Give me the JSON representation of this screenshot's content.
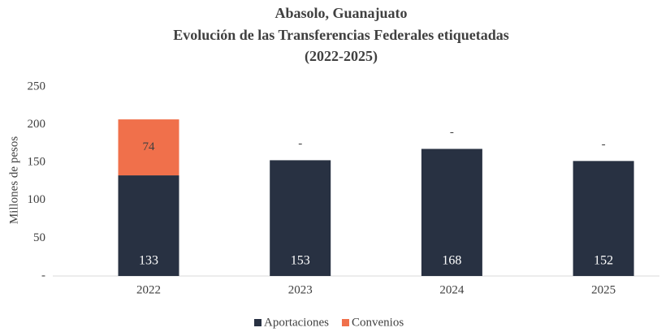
{
  "chart_data": {
    "type": "stacked_bar",
    "title": [
      "Abasolo, Guanajuato",
      "Evolución de las Transferencias  Federales etiquetadas",
      "(2022-2025)"
    ],
    "y_label": "Millones de pesos",
    "categories": [
      "2022",
      "2023",
      "2024",
      "2025"
    ],
    "series": [
      {
        "name": "Aportaciones",
        "color": "#283142",
        "values": [
          133,
          153,
          168,
          152
        ]
      },
      {
        "name": "Convenios",
        "color": "#f0704b",
        "values": [
          74,
          0,
          0,
          0
        ],
        "value_labels": [
          "74",
          "-",
          "-",
          "-"
        ]
      }
    ],
    "ylim": [
      0,
      250
    ],
    "yticks": [
      {
        "value": 0,
        "label": "-"
      },
      50,
      100,
      150,
      200,
      250
    ],
    "legend": "bottom"
  }
}
